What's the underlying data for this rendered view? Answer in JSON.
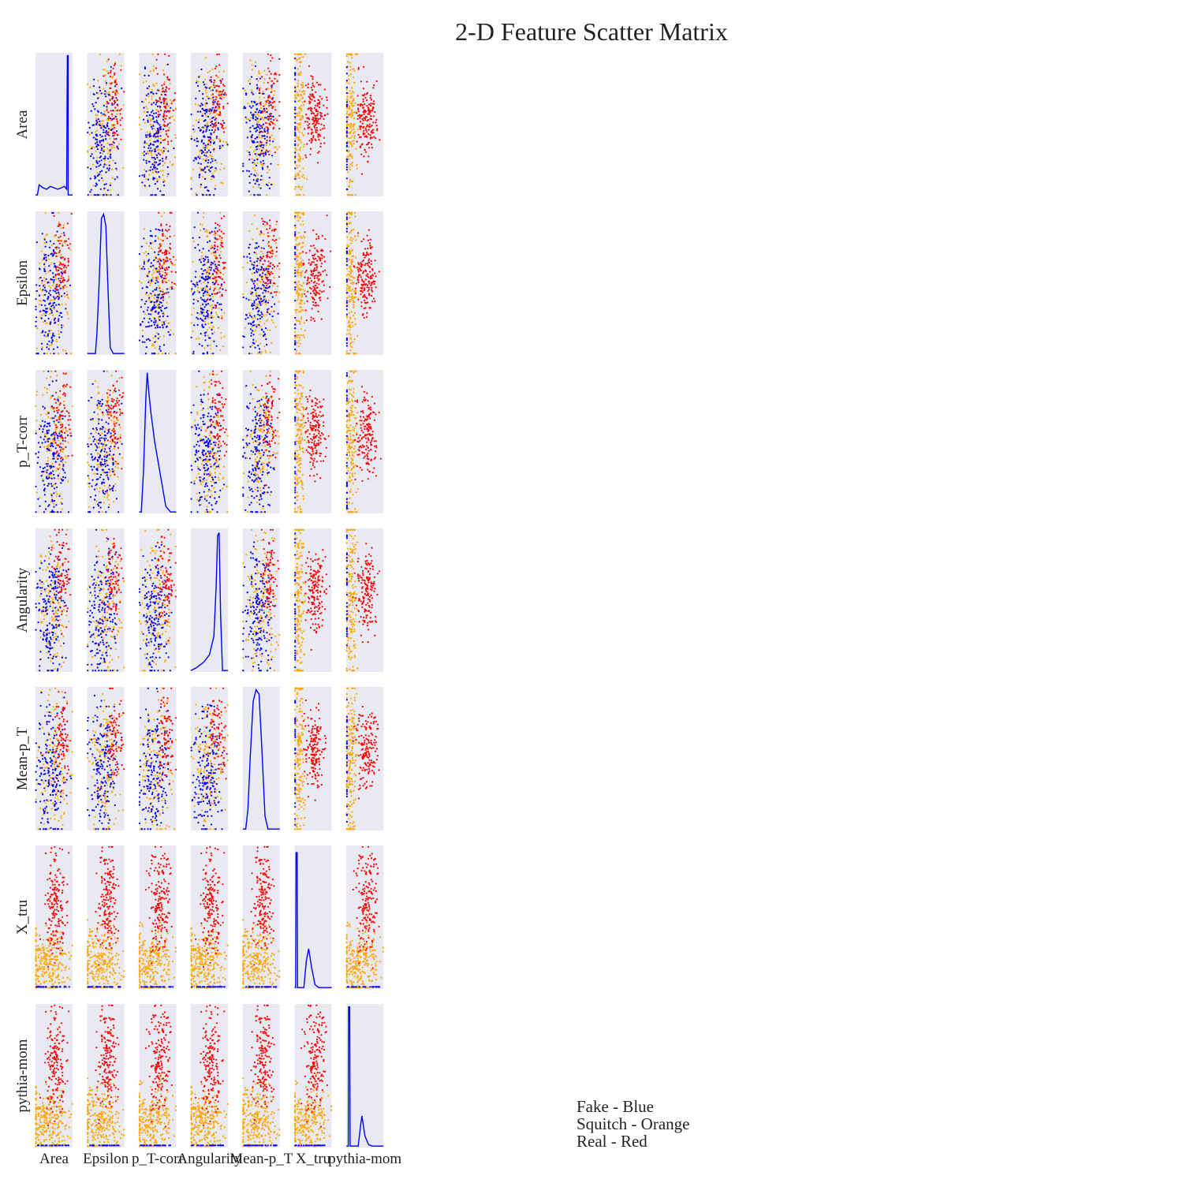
{
  "chart_data": {
    "type": "scatter",
    "title": "2-D Feature Scatter Matrix",
    "features": [
      "Area",
      "Epsilon",
      "p_T-corr",
      "Angularity",
      "Mean-p_T",
      "X_tru",
      "pythia-mom"
    ],
    "layout": "7x7 pair plot; diagonal panels are step histograms, off-diagonal panels are scatter plots",
    "grid": false,
    "legend_placement": "bottom-right",
    "series": [
      {
        "name": "Fake - Blue",
        "color": "#0000ff"
      },
      {
        "name": "Squitch - Orange",
        "color": "#ffa500"
      },
      {
        "name": "Real - Red",
        "color": "#ff0000"
      }
    ],
    "panel_background": "#e9e9f2"
  },
  "legend": {
    "items": [
      "Fake - Blue",
      "Squitch - Orange",
      "Real - Red"
    ]
  }
}
